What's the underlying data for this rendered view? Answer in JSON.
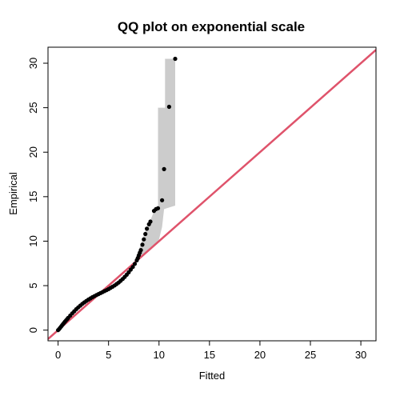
{
  "chart_data": {
    "type": "scatter",
    "title": "QQ plot on exponential scale",
    "xlabel": "Fitted",
    "ylabel": "Empirical",
    "xlim": [
      -1,
      31.5
    ],
    "ylim": [
      -1.2,
      31.8
    ],
    "xticks": [
      0,
      5,
      10,
      15,
      20,
      25,
      30
    ],
    "yticks": [
      0,
      5,
      10,
      15,
      20,
      25,
      30
    ],
    "grid": false,
    "reference_line": {
      "slope": 1,
      "intercept": 0,
      "color": "#DF536B"
    },
    "band_color": "#CCCCCC",
    "point_color": "#000000",
    "band": {
      "upper": [
        [
          7.6,
          7.9
        ],
        [
          8.0,
          9.0
        ],
        [
          8.6,
          11.0
        ],
        [
          9.2,
          12.5
        ],
        [
          9.6,
          13.6
        ],
        [
          9.9,
          13.7
        ],
        [
          9.9,
          25.0
        ],
        [
          10.6,
          25.0
        ],
        [
          10.6,
          30.5
        ],
        [
          11.6,
          30.5
        ]
      ],
      "lower": [
        [
          7.6,
          7.6
        ],
        [
          8.0,
          8.0
        ],
        [
          8.6,
          8.6
        ],
        [
          9.4,
          9.4
        ],
        [
          10.0,
          10.2
        ],
        [
          10.3,
          11.6
        ],
        [
          10.5,
          13.6
        ],
        [
          11.6,
          14.0
        ]
      ]
    },
    "points": [
      [
        0.0,
        0.0
      ],
      [
        0.1,
        0.12
      ],
      [
        0.2,
        0.26
      ],
      [
        0.3,
        0.4
      ],
      [
        0.4,
        0.55
      ],
      [
        0.5,
        0.69
      ],
      [
        0.6,
        0.83
      ],
      [
        0.7,
        0.97
      ],
      [
        0.8,
        1.11
      ],
      [
        0.9,
        1.24
      ],
      [
        1.0,
        1.37
      ],
      [
        1.2,
        1.63
      ],
      [
        1.4,
        1.88
      ],
      [
        1.6,
        2.12
      ],
      [
        1.8,
        2.35
      ],
      [
        2.0,
        2.56
      ],
      [
        2.2,
        2.76
      ],
      [
        2.4,
        2.95
      ],
      [
        2.6,
        3.12
      ],
      [
        2.8,
        3.28
      ],
      [
        3.0,
        3.43
      ],
      [
        3.2,
        3.57
      ],
      [
        3.4,
        3.7
      ],
      [
        3.6,
        3.82
      ],
      [
        3.8,
        3.94
      ],
      [
        4.0,
        4.05
      ],
      [
        4.2,
        4.16
      ],
      [
        4.4,
        4.27
      ],
      [
        4.6,
        4.38
      ],
      [
        4.8,
        4.49
      ],
      [
        5.0,
        4.61
      ],
      [
        5.2,
        4.74
      ],
      [
        5.4,
        4.88
      ],
      [
        5.6,
        5.02
      ],
      [
        5.8,
        5.18
      ],
      [
        6.0,
        5.35
      ],
      [
        6.2,
        5.54
      ],
      [
        6.4,
        5.75
      ],
      [
        6.6,
        5.98
      ],
      [
        6.8,
        6.23
      ],
      [
        7.0,
        6.5
      ],
      [
        7.2,
        6.8
      ],
      [
        7.4,
        7.1
      ],
      [
        7.6,
        7.45
      ],
      [
        7.8,
        7.85
      ],
      [
        7.9,
        8.1
      ],
      [
        8.0,
        8.4
      ],
      [
        8.1,
        8.7
      ],
      [
        8.2,
        9.0
      ],
      [
        8.35,
        9.6
      ],
      [
        8.5,
        10.2
      ],
      [
        8.65,
        10.8
      ],
      [
        8.8,
        11.4
      ],
      [
        9.0,
        11.9
      ],
      [
        9.15,
        12.2
      ],
      [
        9.5,
        13.4
      ],
      [
        9.7,
        13.6
      ],
      [
        9.9,
        13.7
      ],
      [
        10.3,
        14.6
      ],
      [
        10.5,
        18.1
      ],
      [
        11.0,
        25.1
      ],
      [
        11.6,
        30.5
      ]
    ]
  }
}
